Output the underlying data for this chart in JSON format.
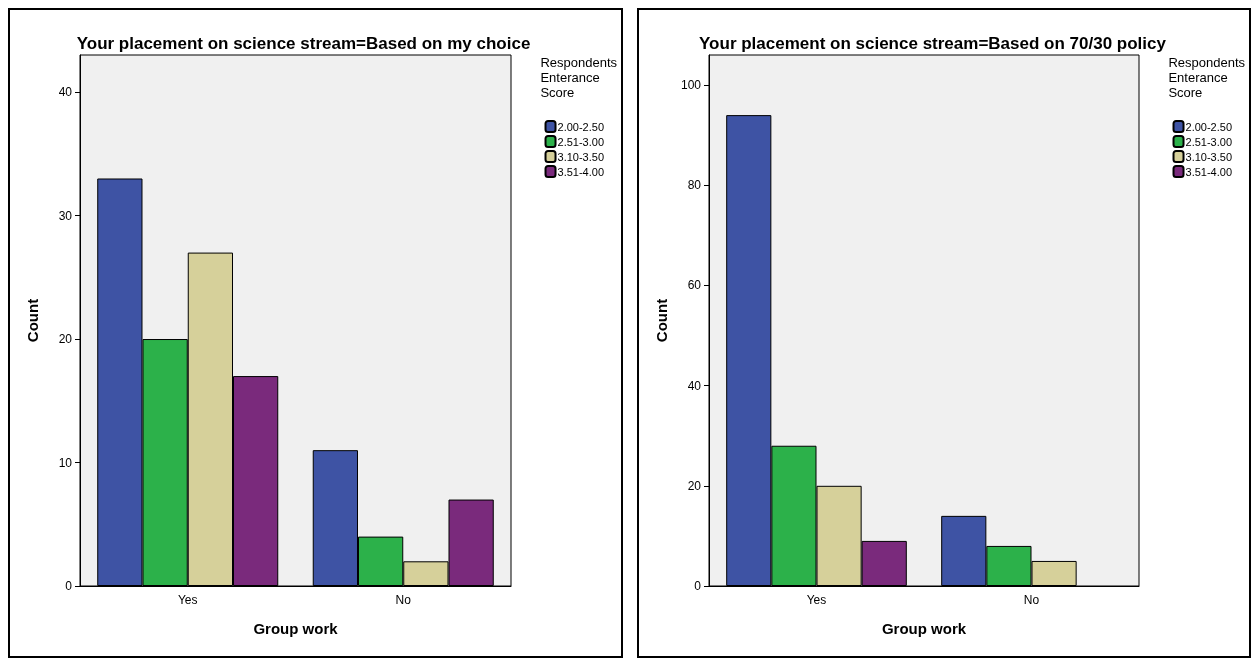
{
  "chart_data": [
    {
      "type": "bar",
      "title": "Your placement on science stream=Based on my choice",
      "xlabel": "Group work",
      "ylabel": "Count",
      "legend_title": "Respondents Enterance Score",
      "categories": [
        "Yes",
        "No"
      ],
      "series": [
        {
          "name": "2.00-2.50",
          "color": "#3e53a4",
          "values": [
            33,
            11
          ]
        },
        {
          "name": "2.51-3.00",
          "color": "#2cb14a",
          "values": [
            20,
            4
          ]
        },
        {
          "name": "3.10-3.50",
          "color": "#d6d09a",
          "values": [
            27,
            2
          ]
        },
        {
          "name": "3.51-4.00",
          "color": "#7a2a7c",
          "values": [
            17,
            7
          ]
        }
      ],
      "ylim": [
        0,
        43
      ],
      "yticks": [
        0,
        10,
        20,
        30,
        40
      ],
      "grid": false,
      "legend": "top right"
    },
    {
      "type": "bar",
      "title": "Your placement on science stream=Based on 70/30 policy",
      "xlabel": "Group work",
      "ylabel": "Count",
      "legend_title": "Respondents Enterance Score",
      "categories": [
        "Yes",
        "No"
      ],
      "series": [
        {
          "name": "2.00-2.50",
          "color": "#3e53a4",
          "values": [
            94,
            14
          ]
        },
        {
          "name": "2.51-3.00",
          "color": "#2cb14a",
          "values": [
            28,
            8
          ]
        },
        {
          "name": "3.10-3.50",
          "color": "#d6d09a",
          "values": [
            20,
            5
          ]
        },
        {
          "name": "3.51-4.00",
          "color": "#7a2a7c",
          "values": [
            9,
            null
          ]
        }
      ],
      "ylim": [
        0,
        106
      ],
      "yticks": [
        0,
        20,
        40,
        60,
        80,
        100
      ],
      "grid": false,
      "legend": "top right"
    }
  ]
}
